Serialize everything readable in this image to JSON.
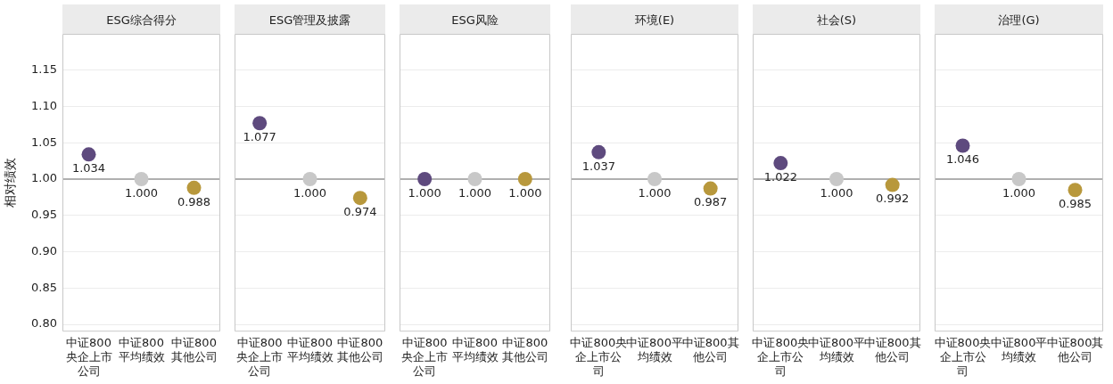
{
  "chart_data": [
    {
      "type": "scatter",
      "title": "ESG综合得分",
      "ylabel": "相对绩效",
      "categories": [
        "中证800央企上市公司",
        "中证800平均绩效",
        "中证800其他公司"
      ],
      "values": [
        1.034,
        1.0,
        0.988
      ],
      "colors": [
        "#5e4a7e",
        "#c8c8c8",
        "#b8983c"
      ],
      "value_labels": [
        "1.034",
        "1.000",
        "0.988"
      ],
      "ylim": [
        0.79,
        1.2
      ],
      "yticks": [
        {
          "value": 0.8,
          "label": "0.80"
        },
        {
          "value": 0.85,
          "label": "0.85"
        },
        {
          "value": 0.9,
          "label": "0.90"
        },
        {
          "value": 0.95,
          "label": "0.95"
        },
        {
          "value": 1.0,
          "label": "1.00"
        },
        {
          "value": 1.05,
          "label": "1.05"
        },
        {
          "value": 1.1,
          "label": "1.10"
        },
        {
          "value": 1.15,
          "label": "1.15"
        }
      ],
      "grid": "y",
      "ref_lines": [
        {
          "axis": "y",
          "value": 1.0,
          "color": "#999999"
        }
      ]
    },
    {
      "type": "scatter",
      "title": "ESG管理及披露",
      "categories": [
        "中证800央企上市公司",
        "中证800平均绩效",
        "中证800其他公司"
      ],
      "values": [
        1.077,
        1.0,
        0.974
      ],
      "colors": [
        "#5e4a7e",
        "#c8c8c8",
        "#b8983c"
      ],
      "value_labels": [
        "1.077",
        "1.000",
        "0.974"
      ],
      "ylim": [
        0.79,
        1.2
      ],
      "yticks": [
        0.8,
        0.85,
        0.9,
        0.95,
        1.0,
        1.05,
        1.1,
        1.15
      ],
      "grid": "y",
      "tick_labels": "x",
      "ref_lines": [
        {
          "axis": "y",
          "value": 1.0,
          "color": "#999999"
        }
      ]
    },
    {
      "type": "scatter",
      "title": "ESG风险",
      "categories": [
        "中证800央企上市公司",
        "中证800平均绩效",
        "中证800其他公司"
      ],
      "values": [
        1.0,
        1.0,
        1.0
      ],
      "colors": [
        "#5e4a7e",
        "#c8c8c8",
        "#b8983c"
      ],
      "value_labels": [
        "1.000",
        "1.000",
        "1.000"
      ],
      "ylim": [
        0.79,
        1.2
      ],
      "yticks": [
        0.8,
        0.85,
        0.9,
        0.95,
        1.0,
        1.05,
        1.1,
        1.15
      ],
      "grid": "y",
      "tick_labels": "x",
      "ref_lines": [
        {
          "axis": "y",
          "value": 1.0,
          "color": "#999999"
        }
      ]
    },
    {
      "type": "scatter",
      "title": "环境(E)",
      "categories": [
        "中证800央企上市公司",
        "中证800平均绩效",
        "中证800其他公司"
      ],
      "values": [
        1.037,
        1.0,
        0.987
      ],
      "colors": [
        "#5e4a7e",
        "#c8c8c8",
        "#b8983c"
      ],
      "value_labels": [
        "1.037",
        "1.000",
        "0.987"
      ],
      "ylim": [
        0.79,
        1.2
      ],
      "yticks": [
        0.8,
        0.85,
        0.9,
        0.95,
        1.0,
        1.05,
        1.1,
        1.15
      ],
      "grid": "y",
      "tick_labels": "x",
      "ref_lines": [
        {
          "axis": "y",
          "value": 1.0,
          "color": "#999999"
        }
      ]
    },
    {
      "type": "scatter",
      "title": "社会(S)",
      "categories": [
        "中证800央企上市公司",
        "中证800平均绩效",
        "中证800其他公司"
      ],
      "values": [
        1.022,
        1.0,
        0.992
      ],
      "colors": [
        "#5e4a7e",
        "#c8c8c8",
        "#b8983c"
      ],
      "value_labels": [
        "1.022",
        "1.000",
        "0.992"
      ],
      "ylim": [
        0.79,
        1.2
      ],
      "yticks": [
        0.8,
        0.85,
        0.9,
        0.95,
        1.0,
        1.05,
        1.1,
        1.15
      ],
      "grid": "y",
      "tick_labels": "x",
      "ref_lines": [
        {
          "axis": "y",
          "value": 1.0,
          "color": "#999999"
        }
      ]
    },
    {
      "type": "scatter",
      "title": "治理(G)",
      "categories": [
        "中证800央企上市公司",
        "中证800平均绩效",
        "中证800其他公司"
      ],
      "values": [
        1.046,
        1.0,
        0.985
      ],
      "colors": [
        "#5e4a7e",
        "#c8c8c8",
        "#b8983c"
      ],
      "value_labels": [
        "1.046",
        "1.000",
        "0.985"
      ],
      "ylim": [
        0.79,
        1.2
      ],
      "yticks": [
        0.8,
        0.85,
        0.9,
        0.95,
        1.0,
        1.05,
        1.1,
        1.15
      ],
      "grid": "y",
      "tick_labels": "x",
      "ref_lines": [
        {
          "axis": "y",
          "value": 1.0,
          "color": "#999999"
        }
      ]
    }
  ]
}
